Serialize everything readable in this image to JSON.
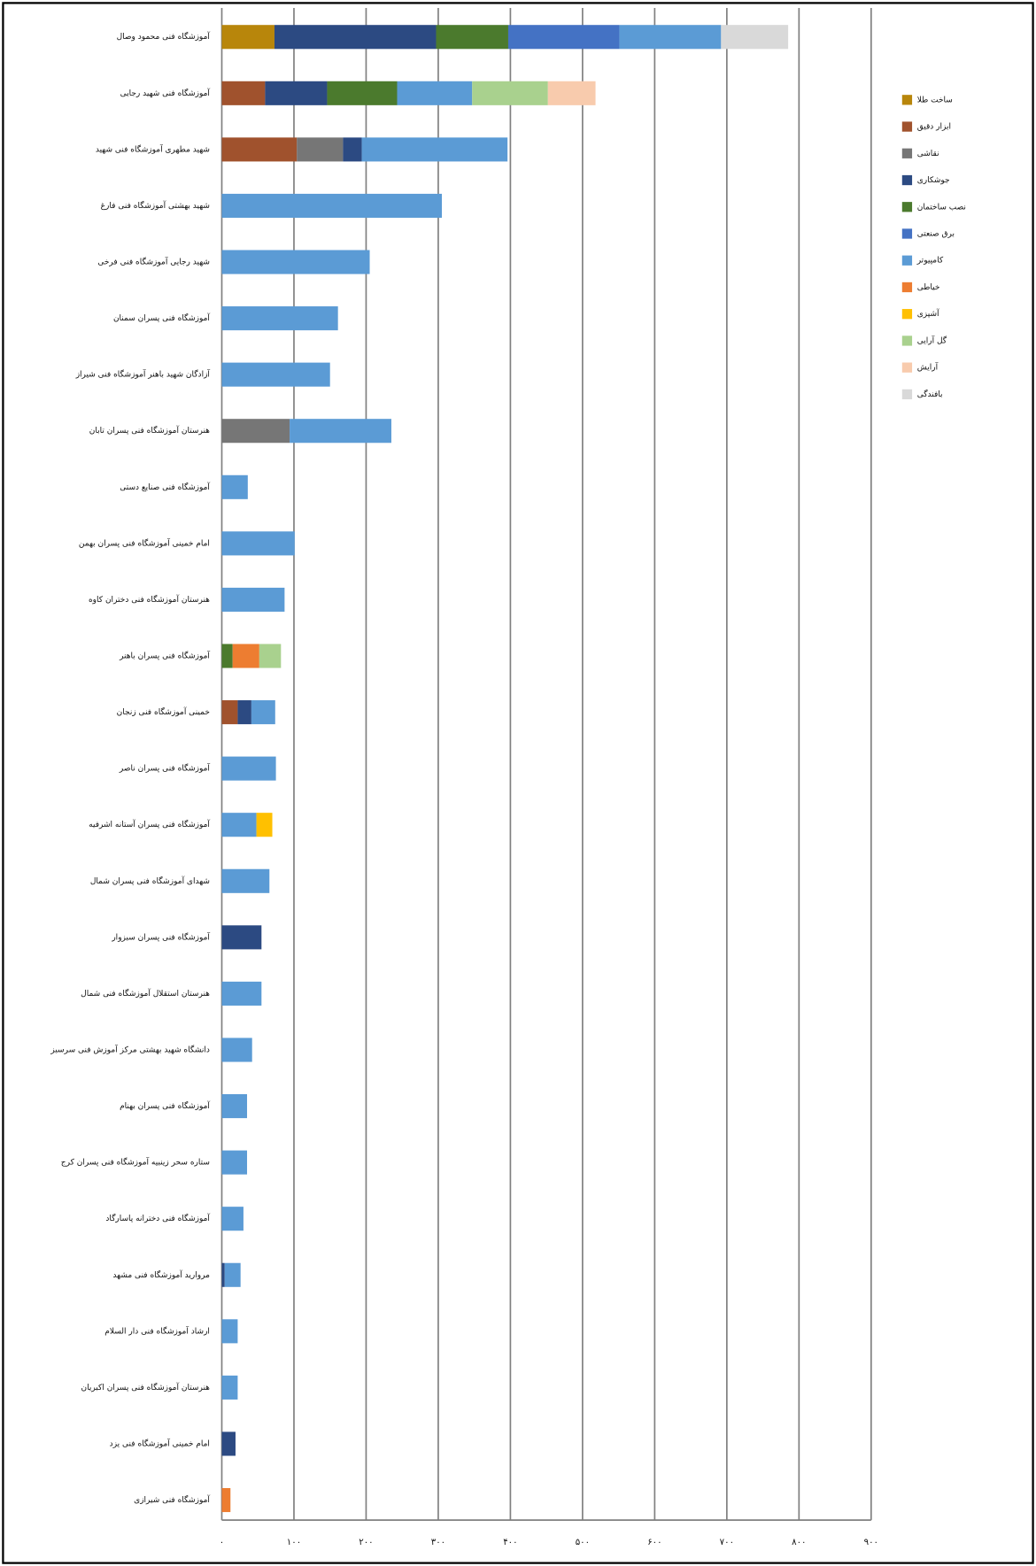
{
  "chart_data": {
    "type": "stacked-barh",
    "categories": [
      "آموزشگاه فنی محمود وصال",
      "آموزشگاه فنی شهید رجایی",
      "شهید مطهری آموزشگاه فنی شهید",
      "شهید بهشتی آموزشگاه فنی فارغ",
      "شهید رجایی آموزشگاه فنی فرخی",
      "آموزشگاه فنی پسران سمنان",
      "آزادگان شهید باهنر آموزشگاه فنی شیراز",
      "هنرستان آموزشگاه فنی پسران تابان",
      "آموزشگاه فنی صنایع دستی",
      "امام خمینی آموزشگاه فنی پسران بهمن",
      "هنرستان آموزشگاه فنی دختران کاوه",
      "آموزشگاه فنی پسران باهنر",
      "خمینی آموزشگاه فنی زنجان",
      "آموزشگاه فنی پسران ناصر",
      "آموزشگاه فنی پسران آستانه اشرفیه",
      "شهدای آموزشگاه فنی پسران شمال",
      "آموزشگاه فنی پسران سبزوار",
      "هنرستان استقلال آموزشگاه فنی شمال",
      "دانشگاه شهید بهشتی مرکز آموزش فنی سرسبز",
      "آموزشگاه فنی پسران بهنام",
      "ستاره سحر زینبیه آموزشگاه فنی پسران کرج",
      "آموزشگاه فنی دخترانه پاسارگاد",
      "مروارید آموزشگاه فنی مشهد",
      "ارشاد آموزشگاه فنی دار السلام",
      "هنرستان آموزشگاه فنی پسران اکبریان",
      "امام خمینی آموزشگاه فنی یزد",
      "آموزشگاه فنی شیرازی"
    ],
    "series": [
      {
        "name": "ساخت طلا",
        "color": "#b8860b",
        "values": [
          73,
          null,
          null,
          null,
          null,
          null,
          null,
          null,
          null,
          null,
          null,
          null,
          null,
          null,
          null,
          null,
          null,
          null,
          null,
          null,
          null,
          null,
          null,
          null,
          null,
          null,
          null
        ]
      },
      {
        "name": "ابزار دقیق",
        "color": "#a0522d",
        "values": [
          null,
          60,
          104,
          null,
          null,
          null,
          null,
          null,
          null,
          null,
          null,
          null,
          22,
          null,
          null,
          null,
          null,
          null,
          null,
          null,
          null,
          null,
          null,
          null,
          null,
          null,
          null
        ]
      },
      {
        "name": "نقاشی",
        "color": "#767676",
        "values": [
          null,
          null,
          64,
          null,
          null,
          null,
          null,
          94,
          null,
          null,
          null,
          null,
          null,
          null,
          null,
          null,
          null,
          null,
          null,
          null,
          null,
          null,
          null,
          null,
          null,
          null,
          null
        ]
      },
      {
        "name": "جوشکاری",
        "color": "#2c4a82",
        "values": [
          224,
          86,
          26,
          null,
          null,
          null,
          null,
          null,
          null,
          null,
          null,
          null,
          19,
          null,
          null,
          null,
          55,
          null,
          null,
          null,
          null,
          null,
          4,
          null,
          null,
          19,
          null
        ]
      },
      {
        "name": "نصب ساختمان",
        "color": "#4b7a2d",
        "values": [
          100,
          97,
          null,
          null,
          null,
          null,
          null,
          null,
          null,
          null,
          null,
          15,
          null,
          null,
          null,
          null,
          null,
          null,
          null,
          null,
          null,
          null,
          null,
          null,
          null,
          null,
          null
        ]
      },
      {
        "name": "برق صنعتی",
        "color": "#4472c4",
        "values": [
          154,
          null,
          null,
          null,
          null,
          null,
          null,
          null,
          null,
          null,
          null,
          null,
          null,
          null,
          null,
          null,
          null,
          null,
          null,
          null,
          null,
          null,
          null,
          null,
          null,
          null,
          null
        ]
      },
      {
        "name": "کامپیوتر",
        "color": "#5b9bd5",
        "values": [
          141,
          104,
          202,
          305,
          205,
          161,
          150,
          141,
          36,
          101,
          87,
          null,
          33,
          75,
          48,
          66,
          null,
          55,
          42,
          35,
          35,
          30,
          22,
          22,
          22,
          null,
          null
        ]
      },
      {
        "name": "خیاطی",
        "color": "#ed7d31",
        "values": [
          null,
          null,
          null,
          null,
          null,
          null,
          null,
          null,
          null,
          null,
          null,
          37,
          null,
          null,
          null,
          null,
          null,
          null,
          null,
          null,
          null,
          null,
          null,
          null,
          null,
          null,
          12
        ]
      },
      {
        "name": "آشپزی",
        "color": "#ffc000",
        "values": [
          null,
          null,
          null,
          null,
          null,
          null,
          null,
          null,
          null,
          null,
          null,
          null,
          null,
          null,
          22,
          null,
          null,
          null,
          null,
          null,
          null,
          null,
          null,
          null,
          null,
          null,
          null
        ]
      },
      {
        "name": "گل آرایی",
        "color": "#a9d18e",
        "values": [
          null,
          105,
          null,
          null,
          null,
          null,
          null,
          null,
          null,
          null,
          null,
          30,
          null,
          null,
          null,
          null,
          null,
          null,
          null,
          null,
          null,
          null,
          null,
          null,
          null,
          null,
          null
        ]
      },
      {
        "name": "آرایش",
        "color": "#f8cbad",
        "values": [
          null,
          66,
          null,
          null,
          null,
          null,
          null,
          null,
          null,
          null,
          null,
          null,
          null,
          null,
          null,
          null,
          null,
          null,
          null,
          null,
          null,
          null,
          null,
          null,
          null,
          null,
          null
        ]
      },
      {
        "name": "بافندگی",
        "color": "#d9d9d9",
        "values": [
          93,
          null,
          null,
          null,
          null,
          null,
          null,
          null,
          null,
          null,
          null,
          null,
          null,
          null,
          null,
          null,
          null,
          null,
          null,
          null,
          null,
          null,
          null,
          null,
          null,
          null,
          null
        ]
      }
    ],
    "xlim": [
      0,
      900
    ],
    "xticks": [
      {
        "value": 0,
        "label": "۰"
      },
      {
        "value": 100,
        "label": "۱۰۰"
      },
      {
        "value": 200,
        "label": "۲۰۰"
      },
      {
        "value": 300,
        "label": "۳۰۰"
      },
      {
        "value": 400,
        "label": "۴۰۰"
      },
      {
        "value": 500,
        "label": "۵۰۰"
      },
      {
        "value": 600,
        "label": "۶۰۰"
      },
      {
        "value": 700,
        "label": "۷۰۰"
      },
      {
        "value": 800,
        "label": "۸۰۰"
      },
      {
        "value": 900,
        "label": "۹۰۰"
      }
    ],
    "grid": true,
    "legend": "right"
  }
}
